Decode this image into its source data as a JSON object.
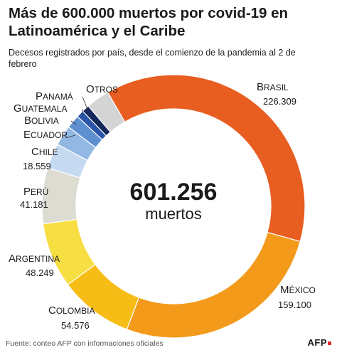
{
  "title": "Más de 600.000 muertos por covid-19 en Latinoamérica y el Caribe",
  "subtitle": "Decesos registrados por país, desde el comienzo de la pandemia al 2 de febrero",
  "footer": "Fuente: conteo AFP con informaciones oficiales",
  "logo": "AFP",
  "center": {
    "value": "601.256",
    "label": "muertos"
  },
  "chart_data": {
    "type": "pie",
    "variant": "donut",
    "total": 601256,
    "slices": [
      {
        "name": "Brasil",
        "value": 226309,
        "value_label": "226.309",
        "color": "#e85d20"
      },
      {
        "name": "México",
        "value": 159100,
        "value_label": "159.100",
        "color": "#f39a1b"
      },
      {
        "name": "Colombia",
        "value": 54576,
        "value_label": "54.576",
        "color": "#f7bd17"
      },
      {
        "name": "Argentina",
        "value": 48249,
        "value_label": "48.249",
        "color": "#f7df43"
      },
      {
        "name": "Perú",
        "value": 41181,
        "value_label": "41.181",
        "color": "#dcdcd2"
      },
      {
        "name": "Chile",
        "value": 18559,
        "value_label": "18.559",
        "color": "#c5daf1"
      },
      {
        "name": "Ecuador",
        "value": 15000,
        "value_label": "",
        "color": "#93b8e4"
      },
      {
        "name": "Bolivia",
        "value": 10000,
        "value_label": "",
        "color": "#5e8fd0"
      },
      {
        "name": "Guatemala",
        "value": 5500,
        "value_label": "",
        "color": "#2a55a8"
      },
      {
        "name": "Panamá",
        "value": 5500,
        "value_label": "",
        "color": "#14285c"
      },
      {
        "name": "Otros",
        "value": 17282,
        "value_label": "",
        "color": "#d4d4d4"
      }
    ]
  }
}
